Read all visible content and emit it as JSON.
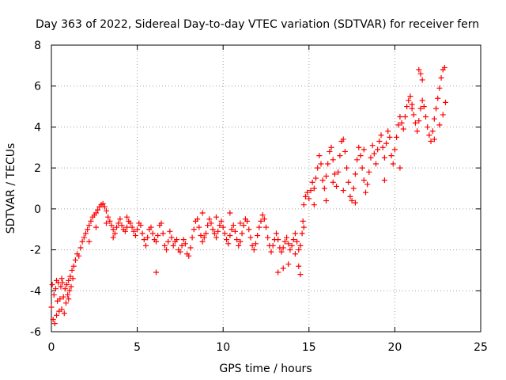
{
  "chart_data": {
    "type": "scatter",
    "title": "Day 363 of 2022, Sidereal Day-to-day VTEC variation (SDTVAR) for receiver fern",
    "xlabel": "GPS time / hours",
    "ylabel": "SDTVAR / TECUs",
    "xlim": [
      0,
      25
    ],
    "ylim": [
      -6,
      8
    ],
    "xticks": [
      "0",
      "5",
      "10",
      "15",
      "20",
      "25"
    ],
    "yticks": [
      "-6",
      "-4",
      "-2",
      "0",
      "2",
      "4",
      "6",
      "8"
    ],
    "xtick_values": [
      0,
      5,
      10,
      15,
      20,
      25
    ],
    "ytick_values": [
      -6,
      -4,
      -2,
      0,
      2,
      4,
      6,
      8
    ],
    "grid": true,
    "marker": "+",
    "series": [
      {
        "name": "SDTVAR",
        "color": "#ff0000",
        "points": [
          [
            0.0,
            -4.8
          ],
          [
            0.05,
            -3.7
          ],
          [
            0.1,
            -5.4
          ],
          [
            0.15,
            -4.2
          ],
          [
            0.2,
            -5.6
          ],
          [
            0.25,
            -3.9
          ],
          [
            0.3,
            -5.2
          ],
          [
            0.35,
            -4.5
          ],
          [
            0.4,
            -3.6
          ],
          [
            0.45,
            -5.0
          ],
          [
            0.5,
            -4.4
          ],
          [
            0.55,
            -3.8
          ],
          [
            0.6,
            -4.9
          ],
          [
            0.65,
            -3.6
          ],
          [
            0.7,
            -4.3
          ],
          [
            0.75,
            -5.1
          ],
          [
            0.8,
            -3.9
          ],
          [
            0.85,
            -4.6
          ],
          [
            0.9,
            -3.7
          ],
          [
            0.95,
            -4.2
          ],
          [
            1.0,
            -3.5
          ],
          [
            1.05,
            -4.0
          ],
          [
            1.1,
            -3.3
          ],
          [
            1.15,
            -3.8
          ],
          [
            1.2,
            -3.0
          ],
          [
            1.25,
            -3.4
          ],
          [
            1.3,
            -2.8
          ],
          [
            1.4,
            -2.5
          ],
          [
            1.5,
            -2.2
          ],
          [
            1.6,
            -2.3
          ],
          [
            1.7,
            -1.9
          ],
          [
            1.8,
            -1.6
          ],
          [
            1.9,
            -1.4
          ],
          [
            2.0,
            -1.2
          ],
          [
            2.1,
            -1.0
          ],
          [
            2.2,
            -0.8
          ],
          [
            2.3,
            -0.6
          ],
          [
            2.4,
            -0.4
          ],
          [
            2.5,
            -0.3
          ],
          [
            2.6,
            -0.2
          ],
          [
            2.7,
            -0.05
          ],
          [
            2.8,
            0.1
          ],
          [
            2.9,
            0.2
          ],
          [
            3.0,
            0.25
          ],
          [
            3.1,
            0.1
          ],
          [
            3.2,
            -0.1
          ],
          [
            3.3,
            -0.4
          ],
          [
            3.4,
            -0.6
          ],
          [
            3.5,
            -0.8
          ],
          [
            3.6,
            -1.0
          ],
          [
            3.7,
            -1.2
          ],
          [
            3.8,
            -0.9
          ],
          [
            3.9,
            -0.7
          ],
          [
            4.0,
            -0.5
          ],
          [
            4.1,
            -0.8
          ],
          [
            4.2,
            -1.0
          ],
          [
            4.3,
            -1.1
          ],
          [
            4.4,
            -0.9
          ],
          [
            4.5,
            -0.6
          ],
          [
            4.6,
            -0.7
          ],
          [
            4.7,
            -0.9
          ],
          [
            4.8,
            -1.1
          ],
          [
            4.9,
            -1.3
          ],
          [
            5.0,
            -1.0
          ],
          [
            5.1,
            -0.7
          ],
          [
            5.2,
            -0.8
          ],
          [
            5.3,
            -1.2
          ],
          [
            5.4,
            -1.5
          ],
          [
            5.5,
            -1.8
          ],
          [
            5.6,
            -1.4
          ],
          [
            5.7,
            -1.0
          ],
          [
            5.8,
            -0.9
          ],
          [
            5.9,
            -1.2
          ],
          [
            6.0,
            -1.5
          ],
          [
            6.1,
            -1.6
          ],
          [
            6.2,
            -1.3
          ],
          [
            6.3,
            -0.8
          ],
          [
            6.4,
            -0.7
          ],
          [
            6.5,
            -1.2
          ],
          [
            6.6,
            -1.8
          ],
          [
            6.7,
            -2.0
          ],
          [
            6.8,
            -1.6
          ],
          [
            6.9,
            -1.1
          ],
          [
            7.0,
            -1.4
          ],
          [
            7.1,
            -1.8
          ],
          [
            7.2,
            -1.6
          ],
          [
            7.3,
            -1.5
          ],
          [
            7.4,
            -2.0
          ],
          [
            7.5,
            -2.1
          ],
          [
            7.6,
            -1.8
          ],
          [
            7.7,
            -1.5
          ],
          [
            7.8,
            -1.7
          ],
          [
            7.9,
            -2.2
          ],
          [
            8.0,
            -2.3
          ],
          [
            8.1,
            -1.9
          ],
          [
            8.2,
            -1.4
          ],
          [
            8.3,
            -1.0
          ],
          [
            8.4,
            -0.6
          ],
          [
            8.5,
            -0.5
          ],
          [
            8.6,
            -0.9
          ],
          [
            8.7,
            -1.3
          ],
          [
            8.8,
            -1.6
          ],
          [
            8.9,
            -1.4
          ],
          [
            9.0,
            -1.2
          ],
          [
            9.1,
            -0.8
          ],
          [
            9.2,
            -0.5
          ],
          [
            9.3,
            -0.7
          ],
          [
            9.4,
            -1.0
          ],
          [
            9.5,
            -1.2
          ],
          [
            9.6,
            -1.4
          ],
          [
            9.7,
            -1.1
          ],
          [
            9.8,
            -0.8
          ],
          [
            9.9,
            -0.6
          ],
          [
            10.0,
            -0.9
          ],
          [
            10.1,
            -1.2
          ],
          [
            10.2,
            -1.5
          ],
          [
            10.3,
            -1.7
          ],
          [
            10.4,
            -1.3
          ],
          [
            10.5,
            -1.0
          ],
          [
            10.6,
            -0.8
          ],
          [
            10.7,
            -1.1
          ],
          [
            10.8,
            -1.5
          ],
          [
            10.9,
            -1.8
          ],
          [
            11.0,
            -1.6
          ],
          [
            11.1,
            -1.2
          ],
          [
            11.2,
            -0.8
          ],
          [
            11.3,
            -0.5
          ],
          [
            11.4,
            -0.6
          ],
          [
            11.5,
            -1.0
          ],
          [
            11.6,
            -1.4
          ],
          [
            11.7,
            -1.8
          ],
          [
            11.8,
            -2.0
          ],
          [
            11.9,
            -1.7
          ],
          [
            12.0,
            -1.3
          ],
          [
            12.1,
            -0.9
          ],
          [
            12.2,
            -0.6
          ],
          [
            12.3,
            -0.3
          ],
          [
            12.4,
            -0.5
          ],
          [
            12.5,
            -0.9
          ],
          [
            12.6,
            -1.4
          ],
          [
            12.7,
            -1.8
          ],
          [
            12.8,
            -2.1
          ],
          [
            12.9,
            -1.8
          ],
          [
            13.0,
            -1.5
          ],
          [
            13.1,
            -1.2
          ],
          [
            13.2,
            -1.5
          ],
          [
            13.3,
            -1.9
          ],
          [
            13.4,
            -2.1
          ],
          [
            13.5,
            -1.9
          ],
          [
            13.6,
            -1.6
          ],
          [
            13.7,
            -1.4
          ],
          [
            13.8,
            -1.7
          ],
          [
            13.9,
            -2.0
          ],
          [
            14.0,
            -1.8
          ],
          [
            14.1,
            -1.5
          ],
          [
            14.2,
            -1.2
          ],
          [
            14.3,
            -1.6
          ],
          [
            14.4,
            -2.0
          ],
          [
            14.5,
            -1.8
          ],
          [
            14.6,
            -1.2
          ],
          [
            14.65,
            -0.6
          ],
          [
            14.7,
            0.2
          ],
          [
            14.8,
            0.6
          ],
          [
            14.9,
            0.8
          ],
          [
            15.0,
            0.5
          ],
          [
            15.1,
            0.9
          ],
          [
            15.2,
            1.3
          ],
          [
            15.3,
            1.0
          ],
          [
            15.4,
            1.5
          ],
          [
            15.5,
            2.0
          ],
          [
            15.6,
            2.6
          ],
          [
            15.7,
            2.2
          ],
          [
            15.8,
            1.4
          ],
          [
            15.9,
            1.0
          ],
          [
            16.0,
            1.6
          ],
          [
            16.1,
            2.2
          ],
          [
            16.2,
            2.8
          ],
          [
            16.3,
            3.0
          ],
          [
            16.4,
            2.4
          ],
          [
            16.5,
            1.7
          ],
          [
            16.6,
            1.1
          ],
          [
            16.7,
            1.8
          ],
          [
            16.8,
            2.6
          ],
          [
            16.9,
            3.3
          ],
          [
            17.0,
            3.4
          ],
          [
            17.1,
            2.8
          ],
          [
            17.2,
            2.0
          ],
          [
            17.3,
            1.3
          ],
          [
            17.4,
            0.6
          ],
          [
            17.5,
            0.4
          ],
          [
            17.6,
            1.0
          ],
          [
            17.7,
            1.7
          ],
          [
            17.8,
            2.4
          ],
          [
            17.9,
            3.0
          ],
          [
            18.0,
            2.6
          ],
          [
            18.1,
            2.0
          ],
          [
            18.2,
            1.4
          ],
          [
            18.3,
            0.8
          ],
          [
            18.4,
            1.2
          ],
          [
            18.5,
            1.8
          ],
          [
            18.6,
            2.5
          ],
          [
            18.7,
            3.1
          ],
          [
            18.8,
            2.7
          ],
          [
            18.9,
            2.2
          ],
          [
            19.0,
            2.9
          ],
          [
            19.1,
            3.3
          ],
          [
            19.2,
            3.6
          ],
          [
            19.3,
            3.0
          ],
          [
            19.4,
            2.5
          ],
          [
            19.5,
            3.2
          ],
          [
            19.6,
            3.8
          ],
          [
            19.7,
            3.5
          ],
          [
            19.8,
            2.6
          ],
          [
            19.9,
            2.2
          ],
          [
            20.0,
            2.9
          ],
          [
            20.1,
            3.5
          ],
          [
            20.2,
            4.1
          ],
          [
            20.3,
            4.5
          ],
          [
            20.4,
            4.2
          ],
          [
            20.5,
            3.9
          ],
          [
            20.6,
            4.5
          ],
          [
            20.7,
            5.0
          ],
          [
            20.8,
            5.3
          ],
          [
            20.9,
            5.5
          ],
          [
            21.0,
            5.1
          ],
          [
            21.1,
            4.6
          ],
          [
            21.2,
            4.2
          ],
          [
            21.3,
            3.8
          ],
          [
            21.4,
            4.3
          ],
          [
            21.5,
            4.9
          ],
          [
            21.6,
            5.3
          ],
          [
            21.7,
            5.0
          ],
          [
            21.8,
            4.5
          ],
          [
            21.9,
            4.0
          ],
          [
            22.0,
            3.6
          ],
          [
            22.1,
            3.3
          ],
          [
            22.2,
            3.8
          ],
          [
            22.3,
            4.4
          ],
          [
            22.4,
            4.9
          ],
          [
            22.5,
            5.4
          ],
          [
            22.6,
            5.9
          ],
          [
            22.7,
            6.4
          ],
          [
            22.8,
            6.8
          ],
          [
            22.9,
            6.9
          ],
          [
            22.95,
            5.2
          ],
          [
            22.8,
            4.6
          ],
          [
            22.6,
            4.1
          ],
          [
            21.4,
            6.8
          ],
          [
            21.5,
            6.6
          ],
          [
            21.6,
            6.3
          ],
          [
            0.3,
            -3.5
          ],
          [
            0.6,
            -3.4
          ],
          [
            1.0,
            -4.4
          ],
          [
            2.2,
            -1.6
          ],
          [
            2.6,
            -0.9
          ],
          [
            3.2,
            -0.7
          ],
          [
            3.6,
            -1.4
          ],
          [
            4.4,
            -0.4
          ],
          [
            6.1,
            -3.1
          ],
          [
            8.8,
            -0.2
          ],
          [
            9.6,
            -0.4
          ],
          [
            10.4,
            -0.2
          ],
          [
            11.0,
            -0.7
          ],
          [
            13.2,
            -3.1
          ],
          [
            13.5,
            -2.9
          ],
          [
            13.8,
            -2.7
          ],
          [
            14.2,
            -2.2
          ],
          [
            14.4,
            -2.8
          ],
          [
            14.5,
            -3.2
          ],
          [
            14.7,
            -0.9
          ],
          [
            15.3,
            0.2
          ],
          [
            16.0,
            0.4
          ],
          [
            16.4,
            1.3
          ],
          [
            17.0,
            0.9
          ],
          [
            17.7,
            0.3
          ],
          [
            18.2,
            2.9
          ],
          [
            19.4,
            1.4
          ],
          [
            20.3,
            2.0
          ],
          [
            21.0,
            4.9
          ],
          [
            22.3,
            3.4
          ]
        ]
      }
    ]
  }
}
